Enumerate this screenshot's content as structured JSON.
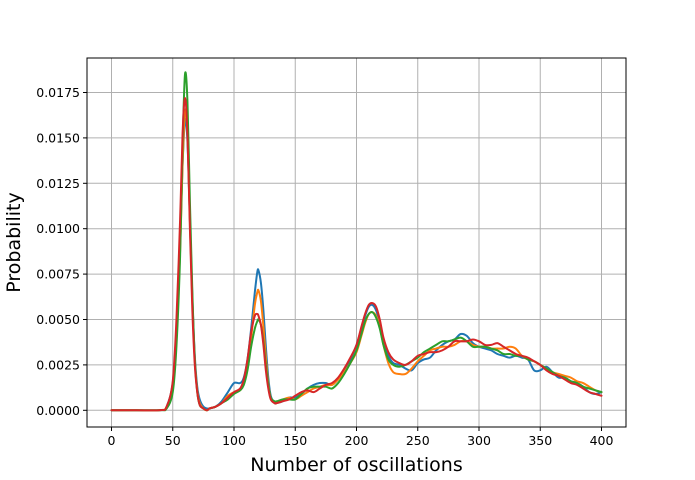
{
  "chart_data": {
    "type": "line",
    "title": "",
    "xlabel": "Number of oscillations",
    "ylabel": "Probability",
    "xlim": [
      -20,
      420
    ],
    "ylim": [
      -0.00092,
      0.0194
    ],
    "grid": true,
    "x_ticks": [
      0,
      50,
      100,
      150,
      200,
      250,
      300,
      350,
      400
    ],
    "x_tick_labels": [
      "0",
      "50",
      "100",
      "150",
      "200",
      "250",
      "300",
      "350",
      "400"
    ],
    "y_ticks": [
      0.0,
      0.0025,
      0.005,
      0.0075,
      0.01,
      0.0125,
      0.015,
      0.0175
    ],
    "y_tick_labels": [
      "0.0000",
      "0.0025",
      "0.0050",
      "0.0075",
      "0.0100",
      "0.0125",
      "0.0150",
      "0.0175"
    ],
    "x": [
      0,
      20,
      40,
      45,
      50,
      53,
      56,
      58,
      60,
      62,
      64,
      66,
      68,
      70,
      72,
      75,
      78,
      80,
      85,
      90,
      95,
      100,
      105,
      108,
      111,
      114,
      117,
      119,
      120,
      122,
      124,
      126,
      128,
      130,
      133,
      135,
      140,
      145,
      150,
      155,
      160,
      165,
      170,
      175,
      180,
      185,
      190,
      195,
      200,
      204,
      207,
      210,
      213,
      216,
      219,
      222,
      226,
      230,
      235,
      240,
      245,
      250,
      255,
      260,
      265,
      270,
      275,
      280,
      285,
      290,
      295,
      300,
      305,
      310,
      315,
      320,
      325,
      330,
      335,
      340,
      345,
      350,
      355,
      360,
      365,
      370,
      375,
      380,
      385,
      390,
      395,
      400
    ],
    "series": [
      {
        "color": "#1f77b4",
        "values": [
          0,
          0,
          1e-05,
          0.0002,
          0.0015,
          0.0045,
          0.0095,
          0.0135,
          0.016,
          0.0148,
          0.0105,
          0.0062,
          0.003,
          0.0013,
          0.0006,
          0.0002,
          0.0001,
          0.0001,
          0.0002,
          0.0005,
          0.001,
          0.0015,
          0.0015,
          0.0018,
          0.0028,
          0.0045,
          0.0065,
          0.0076,
          0.0077,
          0.007,
          0.0055,
          0.0035,
          0.0018,
          0.0008,
          0.0004,
          0.0004,
          0.0005,
          0.0007,
          0.0007,
          0.0009,
          0.0012,
          0.0014,
          0.0015,
          0.0015,
          0.0014,
          0.0017,
          0.0022,
          0.0028,
          0.0036,
          0.0045,
          0.0052,
          0.0057,
          0.0058,
          0.0055,
          0.0048,
          0.0038,
          0.003,
          0.0026,
          0.0025,
          0.0023,
          0.0022,
          0.0026,
          0.0028,
          0.0029,
          0.0033,
          0.0036,
          0.0038,
          0.0039,
          0.0042,
          0.0041,
          0.0037,
          0.0035,
          0.0034,
          0.0033,
          0.0031,
          0.003,
          0.0029,
          0.003,
          0.0029,
          0.0028,
          0.0022,
          0.0022,
          0.0024,
          0.0021,
          0.0018,
          0.0018,
          0.0016,
          0.0015,
          0.0013,
          0.001,
          0.0009,
          0.001
        ]
      },
      {
        "color": "#ff7f0e",
        "values": [
          0,
          0,
          1e-05,
          0.0002,
          0.0013,
          0.004,
          0.0088,
          0.0135,
          0.0165,
          0.0152,
          0.0105,
          0.006,
          0.0028,
          0.0011,
          0.0004,
          0.0001,
          0,
          0.0001,
          0.0002,
          0.0004,
          0.0008,
          0.001,
          0.0011,
          0.0015,
          0.0025,
          0.004,
          0.0058,
          0.0065,
          0.0066,
          0.006,
          0.0046,
          0.0029,
          0.0015,
          0.0007,
          0.0004,
          0.0004,
          0.0006,
          0.0007,
          0.0006,
          0.0008,
          0.001,
          0.0012,
          0.0013,
          0.0014,
          0.0014,
          0.0017,
          0.0021,
          0.0026,
          0.0032,
          0.0041,
          0.0048,
          0.0053,
          0.0054,
          0.0052,
          0.0046,
          0.0036,
          0.0026,
          0.0021,
          0.002,
          0.002,
          0.0023,
          0.0027,
          0.003,
          0.0033,
          0.0034,
          0.0035,
          0.0035,
          0.0036,
          0.0038,
          0.0038,
          0.0036,
          0.0035,
          0.0035,
          0.0034,
          0.0034,
          0.0034,
          0.0035,
          0.0034,
          0.003,
          0.0028,
          0.0027,
          0.0025,
          0.0023,
          0.0021,
          0.002,
          0.0019,
          0.0018,
          0.0016,
          0.0015,
          0.0013,
          0.0011,
          0.001
        ]
      },
      {
        "color": "#2ca02c",
        "values": [
          0,
          0,
          1e-05,
          0.0001,
          0.001,
          0.0035,
          0.0085,
          0.0145,
          0.0185,
          0.017,
          0.0115,
          0.0065,
          0.0028,
          0.001,
          0.0003,
          0.0001,
          0,
          0.0001,
          0.0002,
          0.0004,
          0.0006,
          0.0009,
          0.0011,
          0.0014,
          0.0022,
          0.0035,
          0.0045,
          0.0049,
          0.005,
          0.0047,
          0.0038,
          0.0025,
          0.0014,
          0.0007,
          0.0005,
          0.0005,
          0.0006,
          0.0006,
          0.0006,
          0.0009,
          0.0012,
          0.0013,
          0.0013,
          0.0013,
          0.0012,
          0.0015,
          0.002,
          0.0026,
          0.0033,
          0.0042,
          0.0049,
          0.0053,
          0.0054,
          0.0051,
          0.0045,
          0.0036,
          0.0028,
          0.0025,
          0.0024,
          0.0025,
          0.0027,
          0.0029,
          0.0032,
          0.0034,
          0.0036,
          0.0038,
          0.0038,
          0.0039,
          0.004,
          0.0038,
          0.0035,
          0.0035,
          0.0035,
          0.0034,
          0.0033,
          0.0031,
          0.0031,
          0.003,
          0.003,
          0.0028,
          0.0027,
          0.0025,
          0.0023,
          0.0021,
          0.0019,
          0.0018,
          0.0016,
          0.0015,
          0.0013,
          0.0012,
          0.0011,
          0.001
        ]
      },
      {
        "color": "#d62728",
        "values": [
          0,
          0,
          1e-05,
          0.0002,
          0.0016,
          0.005,
          0.0105,
          0.0152,
          0.0172,
          0.0152,
          0.01,
          0.0055,
          0.0025,
          0.001,
          0.0003,
          0.0001,
          0,
          0.0001,
          0.0002,
          0.0004,
          0.0007,
          0.001,
          0.0012,
          0.0017,
          0.0028,
          0.0043,
          0.0052,
          0.0053,
          0.0052,
          0.0047,
          0.0036,
          0.0022,
          0.0012,
          0.0006,
          0.0004,
          0.0004,
          0.0005,
          0.0006,
          0.0008,
          0.001,
          0.0011,
          0.001,
          0.0012,
          0.0014,
          0.0015,
          0.0018,
          0.0023,
          0.0029,
          0.0036,
          0.0046,
          0.0053,
          0.0058,
          0.0059,
          0.0057,
          0.005,
          0.004,
          0.0032,
          0.0028,
          0.0026,
          0.0025,
          0.0027,
          0.003,
          0.0031,
          0.0032,
          0.0032,
          0.0033,
          0.0035,
          0.0038,
          0.0038,
          0.0038,
          0.0039,
          0.0038,
          0.0036,
          0.0036,
          0.0037,
          0.0035,
          0.0033,
          0.0031,
          0.003,
          0.0029,
          0.0027,
          0.0025,
          0.0022,
          0.002,
          0.0019,
          0.0017,
          0.0015,
          0.0014,
          0.0012,
          0.001,
          0.0009,
          0.0008
        ]
      }
    ]
  }
}
